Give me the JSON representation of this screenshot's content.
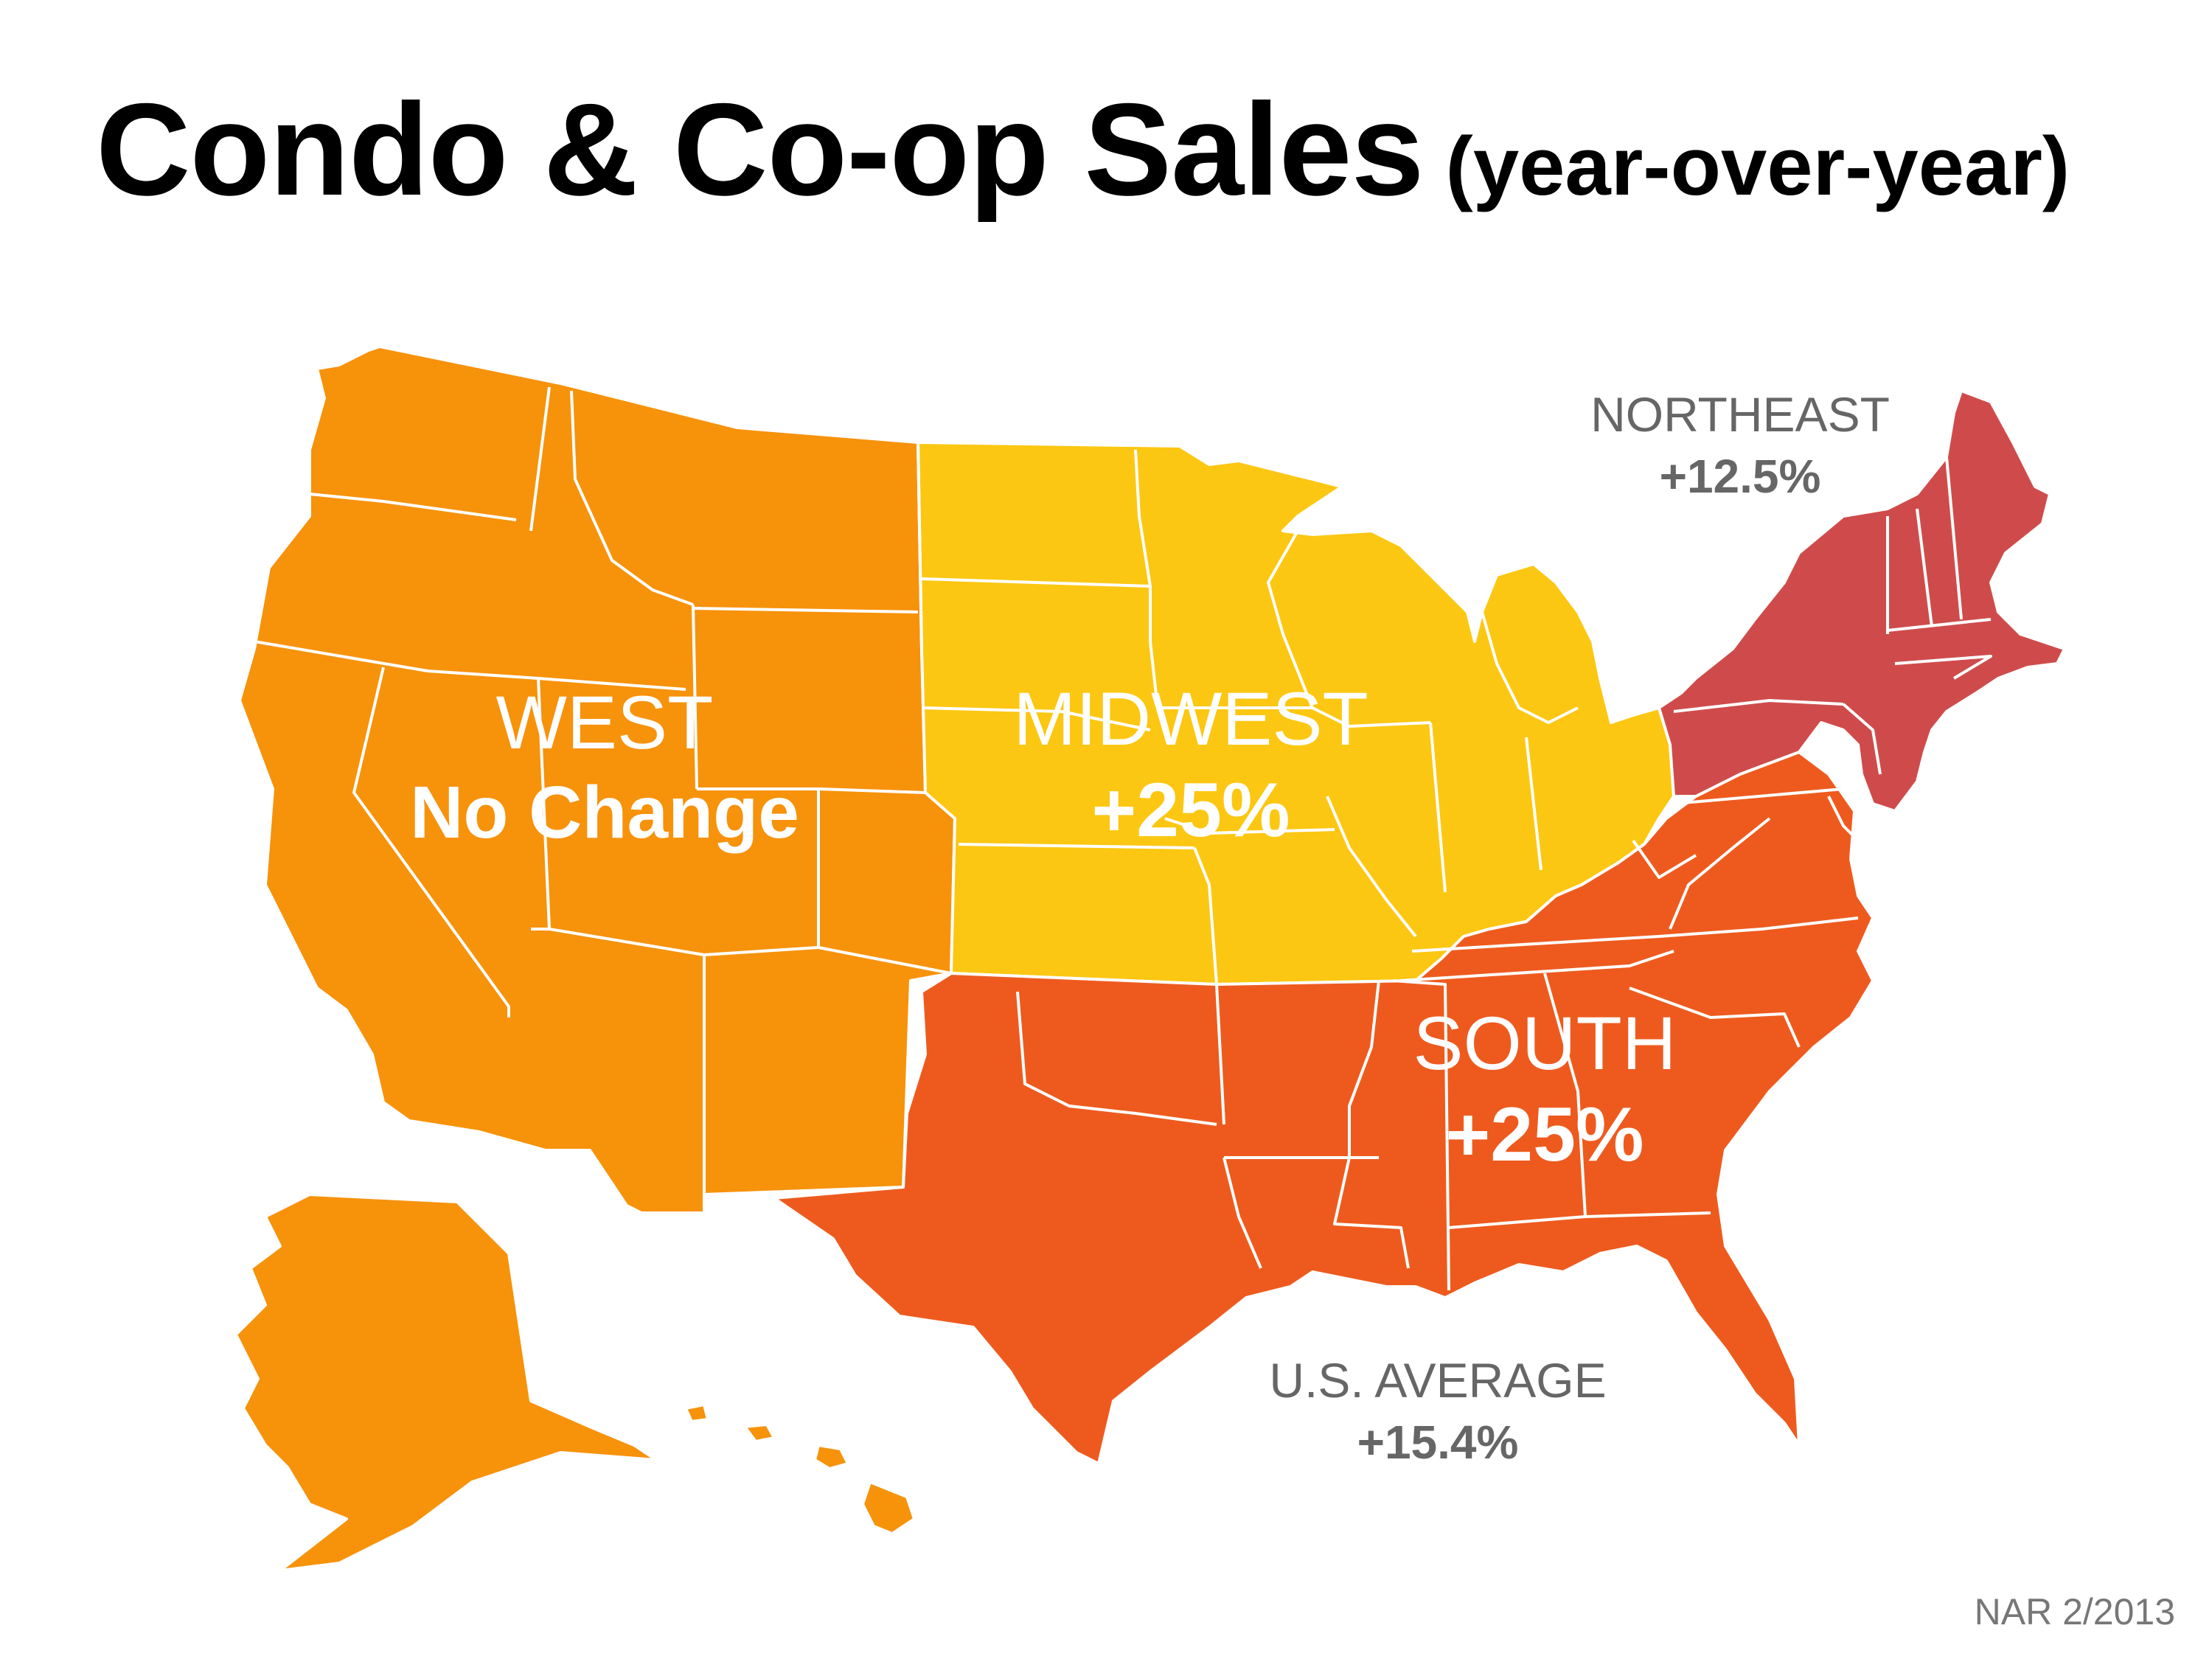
{
  "title": "Condo & Co-op Sales",
  "subtitle": "(year-over-year)",
  "source": "NAR 2/2013",
  "regions": {
    "west": {
      "name": "WEST",
      "value": "No Change",
      "color": "#F7920B"
    },
    "midwest": {
      "name": "MIDWEST",
      "value": "+25%",
      "color": "#FCC712"
    },
    "south": {
      "name": "SOUTH",
      "value": "+25%",
      "color": "#EE5A1E"
    },
    "northeast": {
      "name": "NORTHEAST",
      "value": "+12.5%",
      "color": "#CF4B4B"
    }
  },
  "us_average": {
    "name": "U.S. AVERAGE",
    "value": "+15.4%"
  },
  "colors": {
    "border": "#ffffff",
    "label_grey": "#666666",
    "source_grey": "#777777"
  }
}
